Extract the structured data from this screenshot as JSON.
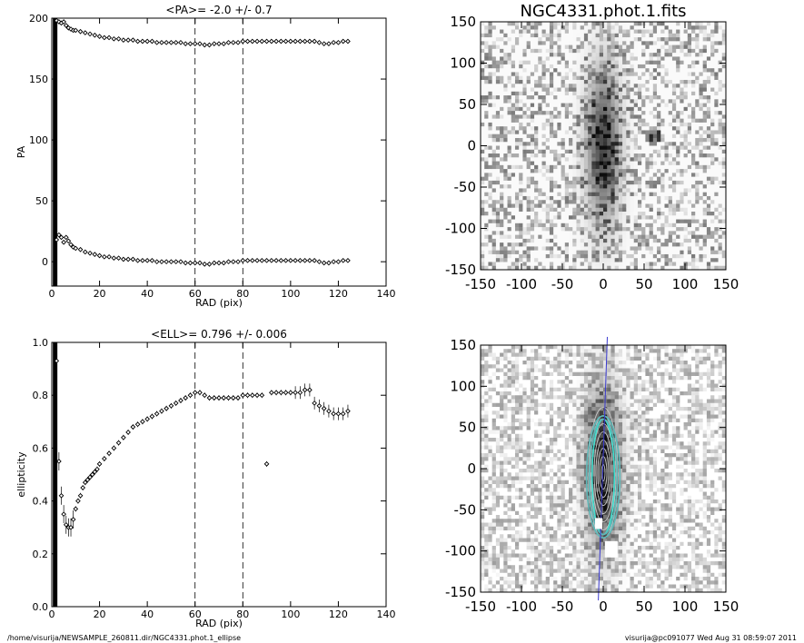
{
  "chart_data": [
    {
      "type": "scatter",
      "title": "<PA>=  -2.0 +/-   0.7",
      "xlabel": "RAD (pix)",
      "ylabel": "PA",
      "xlim": [
        0,
        140
      ],
      "ylim": [
        -20,
        200
      ],
      "xticks": [
        "0",
        "20",
        "40",
        "60",
        "80",
        "100",
        "120",
        "140"
      ],
      "yticks": [
        "0",
        "50",
        "100",
        "150",
        "200"
      ],
      "reference_lines_x": [
        60,
        80
      ],
      "series": [
        {
          "x": [
            2,
            3,
            4,
            5,
            6,
            7,
            8,
            9,
            10,
            12,
            14,
            16,
            18,
            20,
            22,
            24,
            26,
            28,
            30,
            32,
            34,
            36,
            38,
            40,
            42,
            44,
            46,
            48,
            50,
            52,
            54,
            56,
            58,
            60,
            62,
            64,
            66,
            68,
            70,
            72,
            74,
            76,
            78,
            80,
            82,
            84,
            86,
            88,
            90,
            92,
            94,
            96,
            98,
            100,
            102,
            104,
            106,
            108,
            110,
            112,
            114,
            116,
            118,
            120,
            122,
            124
          ],
          "y": [
            198,
            197,
            196,
            197,
            194,
            192,
            191,
            190,
            190,
            189,
            188,
            187,
            186,
            185,
            184,
            184,
            183,
            183,
            182,
            182,
            182,
            181,
            181,
            181,
            181,
            180,
            180,
            180,
            180,
            180,
            180,
            179,
            179,
            179,
            179,
            178,
            178,
            179,
            179,
            179,
            180,
            180,
            180,
            181,
            181,
            181,
            181,
            181,
            181,
            181,
            181,
            181,
            181,
            181,
            181,
            181,
            181,
            181,
            181,
            180,
            179,
            179,
            180,
            180,
            181,
            181
          ]
        },
        {
          "x": [
            2,
            3,
            4,
            5,
            6,
            7,
            8,
            9,
            10,
            12,
            14,
            16,
            18,
            20,
            22,
            24,
            26,
            28,
            30,
            32,
            34,
            36,
            38,
            40,
            42,
            44,
            46,
            48,
            50,
            52,
            54,
            56,
            58,
            60,
            62,
            64,
            66,
            68,
            70,
            72,
            74,
            76,
            78,
            80,
            82,
            84,
            86,
            88,
            90,
            92,
            94,
            96,
            98,
            100,
            102,
            104,
            106,
            108,
            110,
            112,
            114,
            116,
            118,
            120,
            122,
            124
          ],
          "y": [
            18,
            22,
            20,
            16,
            20,
            17,
            14,
            12,
            11,
            10,
            8,
            7,
            6,
            5,
            4,
            4,
            3,
            3,
            2,
            2,
            2,
            1,
            1,
            1,
            1,
            0,
            0,
            0,
            0,
            0,
            0,
            -1,
            -1,
            -1,
            -1,
            -2,
            -2,
            -1,
            -1,
            -1,
            0,
            0,
            0,
            1,
            1,
            1,
            1,
            1,
            1,
            1,
            1,
            1,
            1,
            1,
            1,
            1,
            1,
            1,
            1,
            0,
            -1,
            -1,
            0,
            0,
            1,
            1
          ]
        }
      ]
    },
    {
      "type": "scatter",
      "title": "<ELL>= 0.796 +/-  0.006",
      "xlabel": "RAD (pix)",
      "ylabel": "ellipticity",
      "xlim": [
        0,
        140
      ],
      "ylim": [
        0,
        1
      ],
      "xticks": [
        "0",
        "20",
        "40",
        "60",
        "80",
        "100",
        "120",
        "140"
      ],
      "yticks": [
        "0.0",
        "0.2",
        "0.4",
        "0.6",
        "0.8",
        "1.0"
      ],
      "reference_lines_x": [
        60,
        80
      ],
      "series": [
        {
          "x": [
            2,
            3,
            4,
            5,
            6,
            7,
            8,
            9,
            10,
            11,
            12,
            13,
            14,
            15,
            16,
            17,
            18,
            19,
            20,
            22,
            24,
            26,
            28,
            30,
            32,
            34,
            36,
            38,
            40,
            42,
            44,
            46,
            48,
            50,
            52,
            54,
            56,
            58,
            60,
            62,
            64,
            66,
            68,
            70,
            72,
            74,
            76,
            78,
            80,
            82,
            84,
            86,
            88,
            90,
            92,
            94,
            96,
            98,
            100,
            102,
            104,
            106,
            108,
            110,
            112,
            114,
            116,
            118,
            120,
            122,
            124
          ],
          "y": [
            0.93,
            0.55,
            0.42,
            0.35,
            0.31,
            0.3,
            0.3,
            0.33,
            0.37,
            0.4,
            0.42,
            0.45,
            0.47,
            0.48,
            0.49,
            0.5,
            0.51,
            0.52,
            0.54,
            0.56,
            0.58,
            0.6,
            0.62,
            0.64,
            0.66,
            0.68,
            0.69,
            0.7,
            0.71,
            0.72,
            0.73,
            0.74,
            0.75,
            0.76,
            0.77,
            0.78,
            0.79,
            0.8,
            0.81,
            0.81,
            0.8,
            0.79,
            0.79,
            0.79,
            0.79,
            0.79,
            0.79,
            0.79,
            0.8,
            0.8,
            0.8,
            0.8,
            0.8,
            0.54,
            0.81,
            0.81,
            0.81,
            0.81,
            0.81,
            0.81,
            0.81,
            0.82,
            0.82,
            0.77,
            0.76,
            0.75,
            0.74,
            0.73,
            0.73,
            0.73,
            0.74
          ]
        }
      ]
    }
  ],
  "images": [
    {
      "title": "NGC4331.phot.1.fits",
      "ticks": [
        "-150",
        "-100",
        "-50",
        "0",
        "50",
        "100",
        "150"
      ]
    },
    {
      "title": "",
      "ticks": [
        "-150",
        "-100",
        "-50",
        "0",
        "50",
        "100",
        "150"
      ]
    }
  ],
  "footer": {
    "left": "/home/visurija/NEWSAMPLE_260811.dir/NGC4331.phot.1_ellipse",
    "right": "visurija@pc091077  Wed Aug 31 08:59:07 2011"
  }
}
